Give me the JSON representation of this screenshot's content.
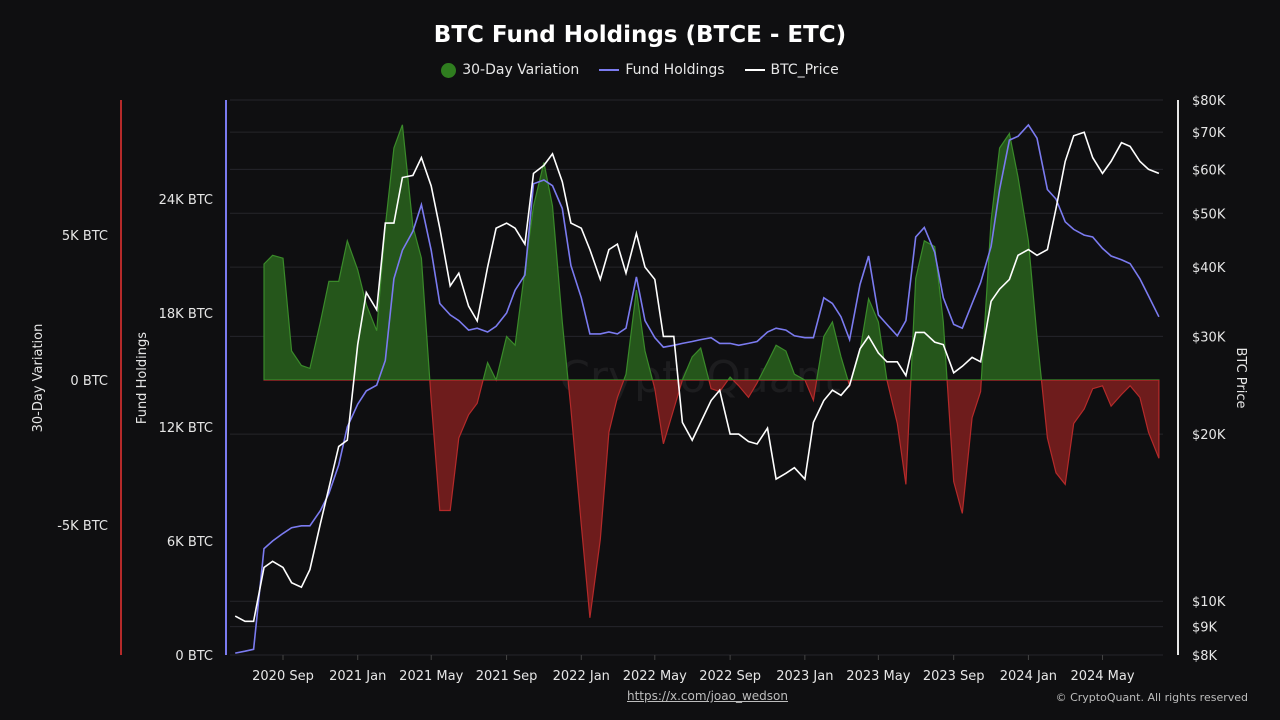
{
  "chart_data": {
    "type": "area+line",
    "title": "BTC Fund Holdings (BTCE - ETC)",
    "legend": {
      "placement": "top-center",
      "entries": [
        {
          "name": "30-Day Variation",
          "color": "#2f7d1f",
          "marker": "circle"
        },
        {
          "name": "Fund Holdings",
          "color": "#7b7bf0",
          "marker": "line"
        },
        {
          "name": "BTC_Price",
          "color": "#ffffff",
          "marker": "line"
        }
      ]
    },
    "axes": {
      "variation": {
        "label": "30-Day Variation",
        "ticks": [
          "5K BTC",
          "0 BTC",
          "-5K BTC"
        ],
        "tick_values": [
          5,
          0,
          -5
        ],
        "range_k": [
          -9.5,
          9.6
        ],
        "color": "#b52a2a"
      },
      "holdings": {
        "label": "Fund Holdings",
        "ticks": [
          "24K BTC",
          "18K BTC",
          "12K BTC",
          "6K BTC",
          "0 BTC"
        ],
        "tick_values": [
          24,
          18,
          12,
          6,
          0
        ],
        "range_k": [
          0,
          29.2
        ],
        "color": "#7b7bf0"
      },
      "price": {
        "label": "BTC Price",
        "scale": "log",
        "ticks": [
          "$80K",
          "$70K",
          "$60K",
          "$50K",
          "$40K",
          "$30K",
          "$20K",
          "$10K",
          "$9K",
          "$8K"
        ],
        "tick_values": [
          80,
          70,
          60,
          50,
          40,
          30,
          20,
          10,
          9,
          8
        ],
        "range_k": [
          8,
          80
        ],
        "color": "#ffffff"
      },
      "x": {
        "ticks": [
          "2020 Sep",
          "2021 Jan",
          "2021 May",
          "2021 Sep",
          "2022 Jan",
          "2022 May",
          "2022 Sep",
          "2023 Jan",
          "2023 May",
          "2023 Sep",
          "2024 Jan",
          "2024 May"
        ],
        "tick_dates": [
          "2020-09-01",
          "2021-01-01",
          "2021-05-01",
          "2021-09-01",
          "2022-01-01",
          "2022-05-01",
          "2022-09-01",
          "2023-01-01",
          "2023-05-01",
          "2023-09-01",
          "2024-01-01",
          "2024-05-01"
        ]
      }
    },
    "grid": true,
    "colors": {
      "positive": "#2f7d1f",
      "negative": "#b52a2a",
      "holdings": "#7b7bf0",
      "price": "#ffffff",
      "background": "#0f0f11"
    },
    "dates": [
      "2020-06-15",
      "2020-07-01",
      "2020-07-15",
      "2020-08-01",
      "2020-08-15",
      "2020-09-01",
      "2020-09-15",
      "2020-10-01",
      "2020-10-15",
      "2020-11-01",
      "2020-11-15",
      "2020-12-01",
      "2020-12-15",
      "2021-01-01",
      "2021-01-15",
      "2021-02-01",
      "2021-02-15",
      "2021-03-01",
      "2021-03-15",
      "2021-04-01",
      "2021-04-15",
      "2021-05-01",
      "2021-05-15",
      "2021-06-01",
      "2021-06-15",
      "2021-07-01",
      "2021-07-15",
      "2021-08-01",
      "2021-08-15",
      "2021-09-01",
      "2021-09-15",
      "2021-10-01",
      "2021-10-15",
      "2021-11-01",
      "2021-11-15",
      "2021-12-01",
      "2021-12-15",
      "2022-01-01",
      "2022-01-15",
      "2022-02-01",
      "2022-02-15",
      "2022-03-01",
      "2022-03-15",
      "2022-04-01",
      "2022-04-15",
      "2022-05-01",
      "2022-05-15",
      "2022-06-01",
      "2022-06-15",
      "2022-07-01",
      "2022-07-15",
      "2022-08-01",
      "2022-08-15",
      "2022-09-01",
      "2022-09-15",
      "2022-10-01",
      "2022-10-15",
      "2022-11-01",
      "2022-11-15",
      "2022-12-01",
      "2022-12-15",
      "2023-01-01",
      "2023-01-15",
      "2023-02-01",
      "2023-02-15",
      "2023-03-01",
      "2023-03-15",
      "2023-04-01",
      "2023-04-15",
      "2023-05-01",
      "2023-05-15",
      "2023-06-01",
      "2023-06-15",
      "2023-07-01",
      "2023-07-15",
      "2023-08-01",
      "2023-08-15",
      "2023-09-01",
      "2023-09-15",
      "2023-10-01",
      "2023-10-15",
      "2023-11-01",
      "2023-11-15",
      "2023-12-01",
      "2023-12-15",
      "2024-01-01",
      "2024-01-15",
      "2024-02-01",
      "2024-02-15",
      "2024-03-01",
      "2024-03-15",
      "2024-04-01",
      "2024-04-15",
      "2024-05-01",
      "2024-05-15",
      "2024-06-01",
      "2024-06-15",
      "2024-07-01",
      "2024-07-15",
      "2024-08-01"
    ],
    "series": [
      {
        "name": "30-Day Variation",
        "unit": "K BTC",
        "values": [
          null,
          null,
          null,
          4.0,
          4.3,
          4.2,
          1.0,
          0.5,
          0.4,
          2.0,
          3.4,
          3.4,
          4.8,
          3.8,
          2.6,
          1.7,
          5.3,
          8.0,
          8.8,
          5.3,
          4.2,
          -0.7,
          -4.5,
          -4.5,
          -2.0,
          -1.2,
          -0.8,
          0.6,
          0.0,
          1.5,
          1.2,
          3.8,
          6.0,
          7.5,
          6.0,
          2.0,
          -1.0,
          -5.0,
          -8.2,
          -5.5,
          -1.8,
          -0.6,
          0.2,
          3.1,
          1.0,
          -0.3,
          -2.2,
          -1.0,
          0.0,
          0.8,
          1.1,
          -0.3,
          -0.4,
          0.1,
          -0.2,
          -0.6,
          -0.1,
          0.6,
          1.2,
          1.0,
          0.2,
          0.0,
          -0.7,
          1.5,
          2.0,
          0.8,
          -0.2,
          1.0,
          2.8,
          2.0,
          0.0,
          -1.5,
          -3.6,
          3.5,
          4.8,
          4.6,
          2.0,
          -3.5,
          -4.6,
          -1.3,
          -0.4,
          5.5,
          8.0,
          8.5,
          7.0,
          4.8,
          1.5,
          -2.0,
          -3.2,
          -3.6,
          -1.5,
          -1.0,
          -0.3,
          -0.2,
          -0.9,
          -0.5,
          -0.2,
          -0.6,
          -1.8,
          -2.7
        ]
      },
      {
        "name": "Fund Holdings",
        "unit": "K BTC",
        "values": [
          0.1,
          0.2,
          0.3,
          5.6,
          6.0,
          6.4,
          6.7,
          6.8,
          6.8,
          7.6,
          8.5,
          10.0,
          12.0,
          13.2,
          13.9,
          14.2,
          15.5,
          19.8,
          21.3,
          22.3,
          23.7,
          21.3,
          18.5,
          17.9,
          17.6,
          17.1,
          17.2,
          17.0,
          17.3,
          18.0,
          19.2,
          20.0,
          24.8,
          25.0,
          24.7,
          23.5,
          20.5,
          18.8,
          16.9,
          16.9,
          17.0,
          16.9,
          17.2,
          19.9,
          17.6,
          16.7,
          16.2,
          16.3,
          16.4,
          16.5,
          16.6,
          16.7,
          16.4,
          16.4,
          16.3,
          16.4,
          16.5,
          17.0,
          17.2,
          17.1,
          16.8,
          16.7,
          16.7,
          18.8,
          18.5,
          17.8,
          16.6,
          19.5,
          21.0,
          17.9,
          17.4,
          16.8,
          17.6,
          22.0,
          22.5,
          21.2,
          18.8,
          17.4,
          17.2,
          18.5,
          19.6,
          21.5,
          24.5,
          27.1,
          27.3,
          27.9,
          27.2,
          24.5,
          24.0,
          22.8,
          22.4,
          22.1,
          22.0,
          21.4,
          21.0,
          20.8,
          20.6,
          19.8,
          18.9,
          17.8
        ]
      },
      {
        "name": "BTC_Price",
        "unit": "K USD",
        "values": [
          9.4,
          9.2,
          9.2,
          11.5,
          11.8,
          11.5,
          10.8,
          10.6,
          11.4,
          13.8,
          16.0,
          19.0,
          19.5,
          29.0,
          36.0,
          33.5,
          48.0,
          48.0,
          58.0,
          58.5,
          63.0,
          56.0,
          47.0,
          37.0,
          39.0,
          34.0,
          32.0,
          40.0,
          47.0,
          48.0,
          47.0,
          44.0,
          59.0,
          61.0,
          64.0,
          57.0,
          48.0,
          47.0,
          43.0,
          38.0,
          43.0,
          44.0,
          39.0,
          46.0,
          40.0,
          38.0,
          30.0,
          30.0,
          21.0,
          19.5,
          21.0,
          23.0,
          24.0,
          20.0,
          20.0,
          19.4,
          19.2,
          20.5,
          16.6,
          17.0,
          17.4,
          16.6,
          21.0,
          23.0,
          24.0,
          23.5,
          24.5,
          28.5,
          30.0,
          28.0,
          27.0,
          27.0,
          25.5,
          30.5,
          30.5,
          29.3,
          29.0,
          25.8,
          26.5,
          27.5,
          27.0,
          34.7,
          36.5,
          38.0,
          42.0,
          43.0,
          42.0,
          43.0,
          51.0,
          62.0,
          69.0,
          70.0,
          63.0,
          59.0,
          62.0,
          67.0,
          66.0,
          62.0,
          60.0,
          59.0
        ]
      }
    ],
    "watermark": "CryptoQuant"
  },
  "footer": {
    "link": "https://x.com/joao_wedson",
    "copyright": "© CryptoQuant. All rights reserved"
  }
}
